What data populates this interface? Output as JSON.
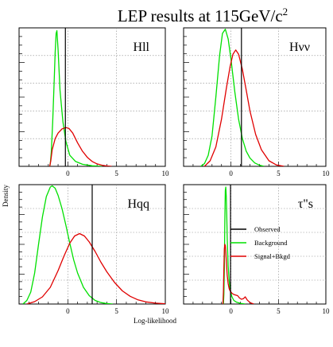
{
  "title": "LEP results at 115GeV/c",
  "title_superscript": "2",
  "xlabel": "Log-likelihood",
  "ylabel": "Density",
  "colors": {
    "observed": "#000000",
    "background": "#00e000",
    "signal_bkgd": "#e00000",
    "grid": "#888888"
  },
  "legend": {
    "placement": "right of panel 4",
    "entries": [
      {
        "key": "observed",
        "label": "Observed"
      },
      {
        "key": "background",
        "label": "Background"
      },
      {
        "key": "signal_bkgd",
        "label": "Signal+Bkgd"
      }
    ]
  },
  "chart_data": [
    {
      "type": "line",
      "panel_label": "Hll",
      "xlim": [
        -5,
        10
      ],
      "ylim": [
        0,
        1
      ],
      "xticks": [
        {
          "v": 0,
          "t": "0"
        },
        {
          "v": 5,
          "t": "5"
        },
        {
          "v": 10,
          "t": "10"
        }
      ],
      "observed": -0.25,
      "series": [
        {
          "key": "background",
          "name": "Background",
          "x": [
            -1.85,
            -1.8,
            -1.7,
            -1.55,
            -1.4,
            -1.3,
            -1.2,
            -1.12,
            -1.0,
            -0.8,
            -0.5,
            -0.2,
            0.2,
            0.8,
            1.5,
            2.5,
            3.5
          ],
          "y": [
            0.0,
            0.02,
            0.1,
            0.32,
            0.62,
            0.82,
            0.96,
            0.98,
            0.84,
            0.55,
            0.32,
            0.18,
            0.08,
            0.035,
            0.015,
            0.004,
            0.0
          ]
        },
        {
          "key": "signal_bkgd",
          "name": "Signal+Bkgd",
          "x": [
            -1.85,
            -1.75,
            -1.6,
            -1.3,
            -1.0,
            -0.6,
            -0.2,
            0.1,
            0.5,
            1.0,
            1.5,
            2.0,
            2.5,
            3.0,
            3.5,
            4.0,
            4.5
          ],
          "y": [
            0.0,
            0.04,
            0.12,
            0.2,
            0.24,
            0.27,
            0.28,
            0.275,
            0.24,
            0.17,
            0.11,
            0.065,
            0.035,
            0.018,
            0.008,
            0.003,
            0.0
          ]
        }
      ]
    },
    {
      "type": "line",
      "panel_label": "Hνν",
      "xlim": [
        -5,
        10
      ],
      "ylim": [
        0,
        1
      ],
      "xticks": [
        {
          "v": 0,
          "t": "0"
        },
        {
          "v": 5,
          "t": "5"
        },
        {
          "v": 10,
          "t": "10"
        }
      ],
      "observed": 1.1,
      "series": [
        {
          "key": "background",
          "name": "Background",
          "x": [
            -3.2,
            -2.8,
            -2.4,
            -2.0,
            -1.6,
            -1.2,
            -0.9,
            -0.6,
            -0.3,
            0.0,
            0.4,
            0.8,
            1.2,
            1.6,
            2.0,
            2.5,
            3.0,
            3.5
          ],
          "y": [
            0.0,
            0.02,
            0.08,
            0.22,
            0.5,
            0.8,
            0.96,
            0.99,
            0.92,
            0.77,
            0.54,
            0.34,
            0.2,
            0.11,
            0.06,
            0.025,
            0.008,
            0.0
          ]
        },
        {
          "key": "signal_bkgd",
          "name": "Signal+Bkgd",
          "x": [
            -2.8,
            -2.2,
            -1.6,
            -1.0,
            -0.5,
            -0.1,
            0.2,
            0.5,
            0.8,
            1.2,
            1.6,
            2.0,
            2.6,
            3.2,
            4.0,
            4.8,
            5.6
          ],
          "y": [
            0.0,
            0.04,
            0.14,
            0.34,
            0.56,
            0.72,
            0.81,
            0.84,
            0.81,
            0.7,
            0.55,
            0.4,
            0.23,
            0.12,
            0.04,
            0.01,
            0.0
          ]
        }
      ]
    },
    {
      "type": "line",
      "panel_label": "Hqq",
      "xlim": [
        -5,
        10
      ],
      "ylim": [
        0,
        1
      ],
      "xticks": [
        {
          "v": 0,
          "t": "0"
        },
        {
          "v": 5,
          "t": "5"
        },
        {
          "v": 10,
          "t": "10"
        }
      ],
      "observed": 2.5,
      "series": [
        {
          "key": "background",
          "name": "Background",
          "x": [
            -4.6,
            -4.2,
            -3.8,
            -3.4,
            -3.0,
            -2.6,
            -2.2,
            -1.8,
            -1.6,
            -1.3,
            -1.0,
            -0.6,
            -0.2,
            0.2,
            0.6,
            1.0,
            1.6,
            2.2,
            2.8,
            3.4,
            4.0,
            4.6
          ],
          "y": [
            0.0,
            0.03,
            0.1,
            0.26,
            0.5,
            0.73,
            0.9,
            0.98,
            0.99,
            0.97,
            0.91,
            0.8,
            0.66,
            0.51,
            0.37,
            0.26,
            0.14,
            0.07,
            0.03,
            0.012,
            0.004,
            0.0
          ]
        },
        {
          "key": "signal_bkgd",
          "name": "Signal+Bkgd",
          "x": [
            -4.2,
            -3.4,
            -2.6,
            -1.8,
            -1.0,
            -0.4,
            0.2,
            0.7,
            1.2,
            1.7,
            2.2,
            2.8,
            3.4,
            4.0,
            4.8,
            5.6,
            6.4,
            7.2,
            8.0,
            9.0,
            10.0
          ],
          "y": [
            0.0,
            0.02,
            0.06,
            0.14,
            0.28,
            0.4,
            0.51,
            0.57,
            0.59,
            0.57,
            0.52,
            0.44,
            0.35,
            0.27,
            0.18,
            0.11,
            0.065,
            0.035,
            0.018,
            0.007,
            0.002
          ]
        }
      ]
    },
    {
      "type": "line",
      "panel_label": "τ\"s",
      "xlim": [
        -5,
        10
      ],
      "ylim": [
        0,
        1
      ],
      "xticks": [
        {
          "v": 0,
          "t": "0"
        },
        {
          "v": 5,
          "t": "5"
        },
        {
          "v": 10,
          "t": "10"
        }
      ],
      "observed": -0.05,
      "series": [
        {
          "key": "background",
          "name": "Background",
          "x": [
            -0.8,
            -0.75,
            -0.7,
            -0.65,
            -0.6,
            -0.55,
            -0.5,
            -0.45,
            -0.4,
            -0.3,
            -0.2,
            -0.1,
            0.1,
            0.3,
            0.6,
            1.0,
            1.5
          ],
          "y": [
            0.0,
            0.08,
            0.3,
            0.7,
            0.95,
            0.98,
            0.9,
            0.75,
            0.55,
            0.32,
            0.2,
            0.12,
            0.06,
            0.03,
            0.015,
            0.006,
            0.0
          ]
        },
        {
          "key": "signal_bkgd",
          "name": "Signal+Bkgd",
          "x": [
            -0.85,
            -0.8,
            -0.75,
            -0.7,
            -0.65,
            -0.6,
            -0.55,
            -0.5,
            -0.45,
            -0.4,
            -0.3,
            -0.2,
            -0.1,
            0.1,
            0.3,
            0.5,
            0.7,
            0.9,
            1.1,
            1.3,
            1.5,
            1.7,
            2.0,
            2.4
          ],
          "y": [
            0.0,
            0.1,
            0.3,
            0.46,
            0.5,
            0.49,
            0.44,
            0.37,
            0.3,
            0.24,
            0.17,
            0.13,
            0.11,
            0.09,
            0.08,
            0.075,
            0.07,
            0.05,
            0.04,
            0.045,
            0.06,
            0.035,
            0.012,
            0.0
          ]
        }
      ]
    }
  ]
}
